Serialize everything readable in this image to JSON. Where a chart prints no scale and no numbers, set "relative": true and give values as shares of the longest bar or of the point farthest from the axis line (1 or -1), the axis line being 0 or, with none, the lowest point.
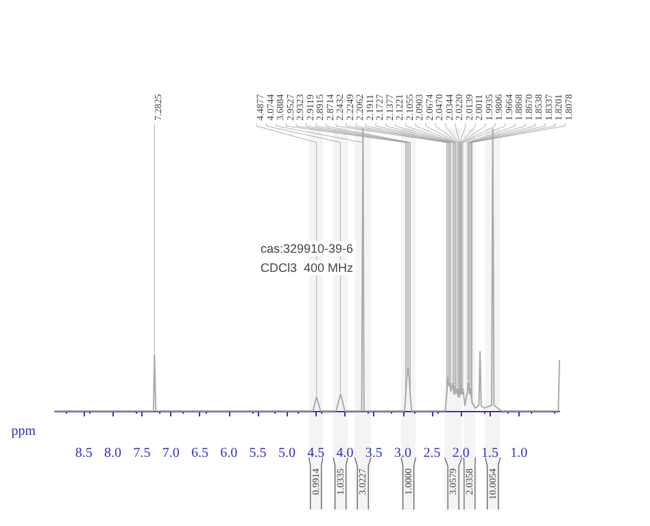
{
  "chart_data": {
    "type": "line",
    "relative": true,
    "xlabel": "ppm",
    "xlim": [
      9.0,
      0.3
    ],
    "xticks": [
      8.5,
      {
        "value": 8,
        "label": "8.0"
      },
      7.5,
      {
        "value": 7,
        "label": "7.0"
      },
      6.5,
      {
        "value": 6,
        "label": "6.0"
      },
      5.5,
      {
        "value": 5,
        "label": "5.0"
      },
      4.5,
      {
        "value": 4,
        "label": "4.0"
      },
      3.5,
      {
        "value": 3,
        "label": "3.0"
      },
      2.5,
      {
        "value": 2,
        "label": "2.0"
      },
      1.5,
      {
        "value": 1,
        "label": "1.0"
      }
    ],
    "bands": [
      {
        "axis": "x",
        "from": 4.62,
        "to": 4.38,
        "label": "0.9914"
      },
      {
        "axis": "x",
        "from": 4.2,
        "to": 3.95,
        "label": "1.0335"
      },
      {
        "axis": "x",
        "from": 3.83,
        "to": 3.55,
        "label": "3.0227"
      },
      {
        "axis": "x",
        "from": 3.03,
        "to": 2.78,
        "label": "1.0000"
      },
      {
        "axis": "x",
        "from": 2.28,
        "to": 1.98,
        "label": "3.0579"
      },
      {
        "axis": "x",
        "from": 1.95,
        "to": 1.75,
        "label": "2.0358"
      },
      {
        "axis": "x",
        "from": 1.58,
        "to": 1.32,
        "label": "10.0054"
      }
    ],
    "tick_labels": "x",
    "grid": false,
    "marker": "none",
    "line_style": "solid",
    "x": [
      9.0,
      7.3,
      7.2825,
      7.26,
      4.55,
      4.4877,
      4.42,
      4.15,
      4.0744,
      4.0,
      3.71,
      3.6884,
      3.67,
      2.97,
      2.9527,
      2.9323,
      2.9119,
      2.8915,
      2.8714,
      2.85,
      2.27,
      2.2432,
      2.2249,
      2.2062,
      2.1911,
      2.1727,
      2.1377,
      2.1221,
      2.1055,
      2.0903,
      2.0674,
      2.047,
      2.0344,
      2.022,
      2.0139,
      2.0011,
      1.9935,
      1.9806,
      1.9664,
      1.93,
      1.8868,
      1.867,
      1.8538,
      1.8337,
      1.8201,
      1.8078,
      1.75,
      1.69,
      1.67,
      1.65,
      1.6,
      1.47,
      1.45,
      1.43,
      1.3,
      0.32,
      0.3
    ],
    "series": [
      {
        "color": "#aaaaaa",
        "values": [
          0,
          0,
          0.2,
          0,
          0,
          0.05,
          0,
          0,
          0.06,
          0,
          0,
          1,
          0,
          0,
          0.05,
          0.12,
          0.15,
          0.12,
          0.05,
          0,
          0,
          0.06,
          0.12,
          0.09,
          0.1,
          0.07,
          0.1,
          0.06,
          0.09,
          0.06,
          0.08,
          0.05,
          0.08,
          0.05,
          0.09,
          0.06,
          0.1,
          0.06,
          0.08,
          0.02,
          0.07,
          0.1,
          0.06,
          0.08,
          0.05,
          0.03,
          0.01,
          0.02,
          0.21,
          0.02,
          0.01,
          0.02,
          1,
          0.02,
          0,
          0,
          0.18
        ]
      }
    ],
    "annotations": [
      "cas:329910-39-6",
      "CDCl3  400 MHz",
      {
        "text": "7.2825",
        "x": 7.2825,
        "y": 0.2
      },
      {
        "text": "4.4877",
        "x": 4.4877,
        "y": 0.05
      },
      {
        "text": "4.0744",
        "x": 4.0744,
        "y": 0.06
      },
      {
        "text": "3.6884",
        "x": 3.6884,
        "y": 1
      },
      {
        "text": "2.9527",
        "x": 2.9527,
        "y": 0.05
      },
      {
        "text": "2.9323",
        "x": 2.9323,
        "y": 0.12
      },
      {
        "text": "2.9119",
        "x": 2.9119,
        "y": 0.15
      },
      {
        "text": "2.8915",
        "x": 2.8915,
        "y": 0.12
      },
      {
        "text": "2.8714",
        "x": 2.8714,
        "y": 0.05
      },
      {
        "text": "2.2432",
        "x": 2.2432,
        "y": 0.06
      },
      {
        "text": "2.2249",
        "x": 2.2249,
        "y": 0.12
      },
      {
        "text": "2.2062",
        "x": 2.2062,
        "y": 0.09
      },
      {
        "text": "2.1911",
        "x": 2.1911,
        "y": 0.1
      },
      {
        "text": "2.1727",
        "x": 2.1727,
        "y": 0.07
      },
      {
        "text": "2.1377",
        "x": 2.1377,
        "y": 0.1
      },
      {
        "text": "2.1221",
        "x": 2.1221,
        "y": 0.06
      },
      {
        "text": "2.1055",
        "x": 2.1055,
        "y": 0.09
      },
      {
        "text": "2.0903",
        "x": 2.0903,
        "y": 0.06
      },
      {
        "text": "2.0674",
        "x": 2.0674,
        "y": 0.08
      },
      {
        "text": "2.0470",
        "x": 2.047,
        "y": 0.05
      },
      {
        "text": "2.0344",
        "x": 2.0344,
        "y": 0.08
      },
      {
        "text": "2.0220",
        "x": 2.022,
        "y": 0.05
      },
      {
        "text": "2.0139",
        "x": 2.0139,
        "y": 0.09
      },
      {
        "text": "2.0011",
        "x": 2.0011,
        "y": 0.06
      },
      {
        "text": "1.9935",
        "x": 1.9935,
        "y": 0.1
      },
      {
        "text": "1.9806",
        "x": 1.9806,
        "y": 0.06
      },
      {
        "text": "1.9664",
        "x": 1.9664,
        "y": 0.08
      },
      {
        "text": "1.8868",
        "x": 1.8868,
        "y": 0.07
      },
      {
        "text": "1.8670",
        "x": 1.867,
        "y": 0.1
      },
      {
        "text": "1.8538",
        "x": 1.8538,
        "y": 0.06
      },
      {
        "text": "1.8337",
        "x": 1.8337,
        "y": 0.08
      },
      {
        "text": "1.8201",
        "x": 1.8201,
        "y": 0.05
      },
      {
        "text": "1.8078",
        "x": 1.8078,
        "y": 0.03
      }
    ]
  }
}
